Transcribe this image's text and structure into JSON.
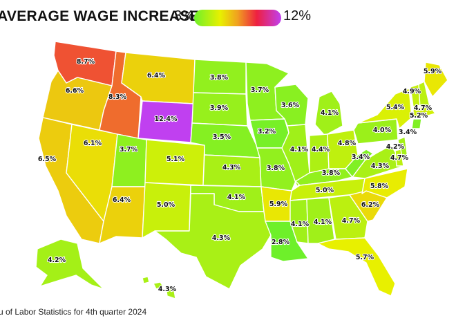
{
  "title": "AVERAGE WAGE INCREASE",
  "legend": {
    "min_label": "3%",
    "max_label": "12%",
    "min": 3,
    "max": 12,
    "gradient": [
      "#6ef02a",
      "#e8f000",
      "#f0a020",
      "#ee2040",
      "#c040f0"
    ]
  },
  "source": "u of Labor Statistics for 4th quarter 2024",
  "states": {
    "WA": {
      "value": 8.7,
      "label": "8.7%"
    },
    "OR": {
      "value": 6.6,
      "label": "6.6%"
    },
    "CA": {
      "value": 6.5,
      "label": "6.5%"
    },
    "NV": {
      "value": 6.1,
      "label": "6.1%"
    },
    "ID": {
      "value": 8.3,
      "label": "8.3%"
    },
    "MT": {
      "value": 6.4,
      "label": "6.4%"
    },
    "WY": {
      "value": 12.4,
      "label": "12.4%"
    },
    "UT": {
      "value": 3.7,
      "label": "3.7%"
    },
    "CO": {
      "value": 5.1,
      "label": "5.1%"
    },
    "AZ": {
      "value": 6.4,
      "label": "6.4%"
    },
    "NM": {
      "value": 5.0,
      "label": "5.0%"
    },
    "ND": {
      "value": 3.8,
      "label": "3.8%"
    },
    "SD": {
      "value": 3.9,
      "label": "3.9%"
    },
    "NE": {
      "value": 3.5,
      "label": "3.5%"
    },
    "KS": {
      "value": 4.3,
      "label": "4.3%"
    },
    "OK": {
      "value": 4.1,
      "label": "4.1%"
    },
    "TX": {
      "value": 4.3,
      "label": "4.3%"
    },
    "MN": {
      "value": 3.7,
      "label": "3.7%"
    },
    "IA": {
      "value": 3.2,
      "label": "3.2%"
    },
    "MO": {
      "value": 3.8,
      "label": "3.8%"
    },
    "AR": {
      "value": 5.9,
      "label": "5.9%"
    },
    "LA": {
      "value": 2.8,
      "label": "2.8%"
    },
    "WI": {
      "value": 3.6,
      "label": "3.6%"
    },
    "IL": {
      "value": 4.1,
      "label": "4.1%"
    },
    "MI": {
      "value": 4.1,
      "label": "4.1%"
    },
    "IN": {
      "value": 4.4,
      "label": "4.4%"
    },
    "OH": {
      "value": 4.8,
      "label": "4.8%"
    },
    "KY": {
      "value": 3.8,
      "label": "3.8%"
    },
    "TN": {
      "value": 5.0,
      "label": "5.0%"
    },
    "MS": {
      "value": 4.1,
      "label": "4.1%"
    },
    "AL": {
      "value": 4.1,
      "label": "4.1%"
    },
    "GA": {
      "value": 4.7,
      "label": "4.7%"
    },
    "FL": {
      "value": 5.7,
      "label": "5.7%"
    },
    "SC": {
      "value": 6.2,
      "label": "6.2%"
    },
    "NC": {
      "value": 5.8,
      "label": "5.8%"
    },
    "VA": {
      "value": 4.3,
      "label": "4.3%"
    },
    "WV": {
      "value": 3.4,
      "label": "3.4%"
    },
    "PA": {
      "value": 4.0,
      "label": "4.0%"
    },
    "NY": {
      "value": 5.4,
      "label": "5.4%"
    },
    "VT": {
      "value": 4.9,
      "label": "4.9%"
    },
    "NH": {
      "value": 4.7,
      "label": "4.7%"
    },
    "ME": {
      "value": 5.9,
      "label": "5.9%"
    },
    "MA": {
      "value": 5.2,
      "label": "5.2%"
    },
    "RI": {
      "value": 3.4,
      "label": "3.4%"
    },
    "NJ": {
      "value": 4.2,
      "label": "4.2%"
    },
    "DE": {
      "value": 4.7,
      "label": "4.7%"
    },
    "AK": {
      "value": 4.2,
      "label": "4.2%"
    },
    "HI": {
      "value": 4.3,
      "label": "4.3%"
    }
  }
}
